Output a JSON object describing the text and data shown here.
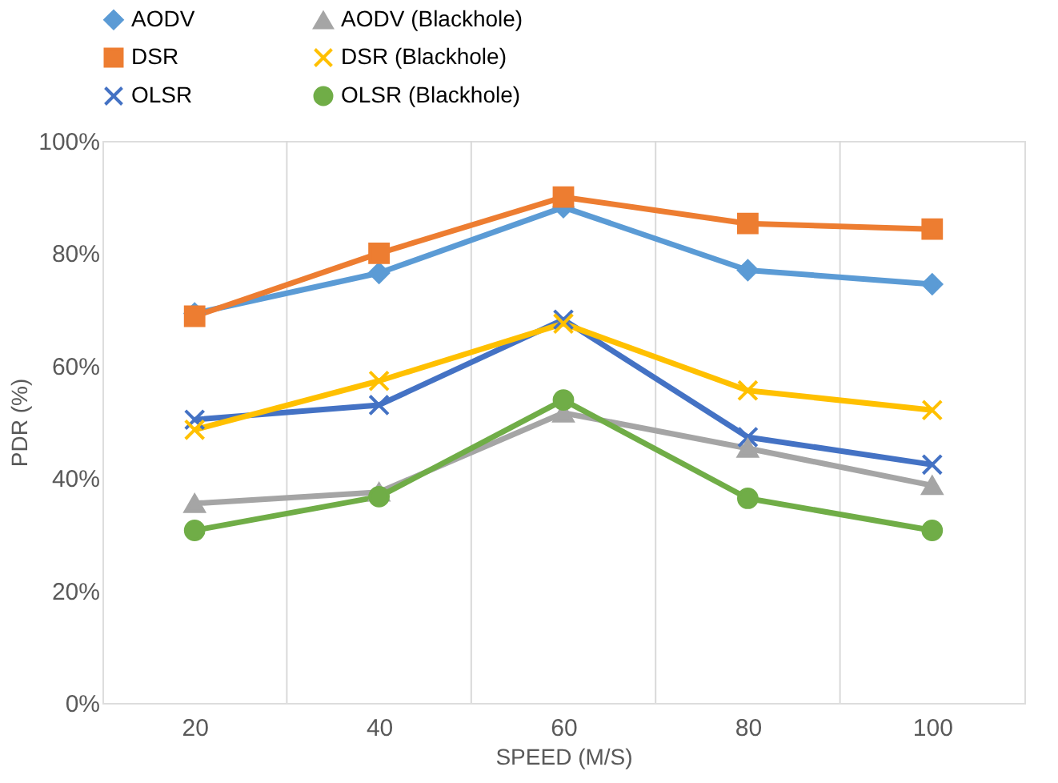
{
  "chart_data": {
    "type": "line",
    "xlabel": "SPEED (M/S)",
    "ylabel": "PDR (%)",
    "categories": [
      "20",
      "40",
      "60",
      "80",
      "100"
    ],
    "ylim": [
      0,
      100
    ],
    "yticks": [
      {
        "value": 0,
        "label": "0%"
      },
      {
        "value": 20,
        "label": "20%"
      },
      {
        "value": 40,
        "label": "40%"
      },
      {
        "value": 60,
        "label": "60%"
      },
      {
        "value": 80,
        "label": "80%"
      },
      {
        "value": 100,
        "label": "100%"
      }
    ],
    "grid": "x",
    "legend": "top",
    "line_style": "solid",
    "series": [
      {
        "name": "AODV",
        "color": "#5b9bd5",
        "marker": "diamond",
        "values": [
          69.3,
          76.5,
          88.2,
          77,
          74.5
        ]
      },
      {
        "name": "DSR",
        "color": "#ed7d31",
        "marker": "square",
        "values": [
          68.8,
          80,
          90,
          85.3,
          84.3
        ]
      },
      {
        "name": "OLSR",
        "color": "#4472c4",
        "marker": "cross",
        "values": [
          50.4,
          53,
          68.2,
          47.3,
          42.4
        ]
      },
      {
        "name": "AODV (Blackhole)",
        "color": "#a5a5a5",
        "marker": "triangle",
        "values": [
          35.5,
          37.5,
          51.6,
          45.3,
          38.7
        ]
      },
      {
        "name": "DSR (Blackhole)",
        "color": "#ffc000",
        "marker": "cross",
        "values": [
          48.6,
          57.3,
          67.5,
          55.6,
          52.1
        ]
      },
      {
        "name": "OLSR (Blackhole)",
        "color": "#70ad47",
        "marker": "circle",
        "values": [
          30.7,
          36.7,
          53.9,
          36.4,
          30.7
        ]
      }
    ]
  }
}
